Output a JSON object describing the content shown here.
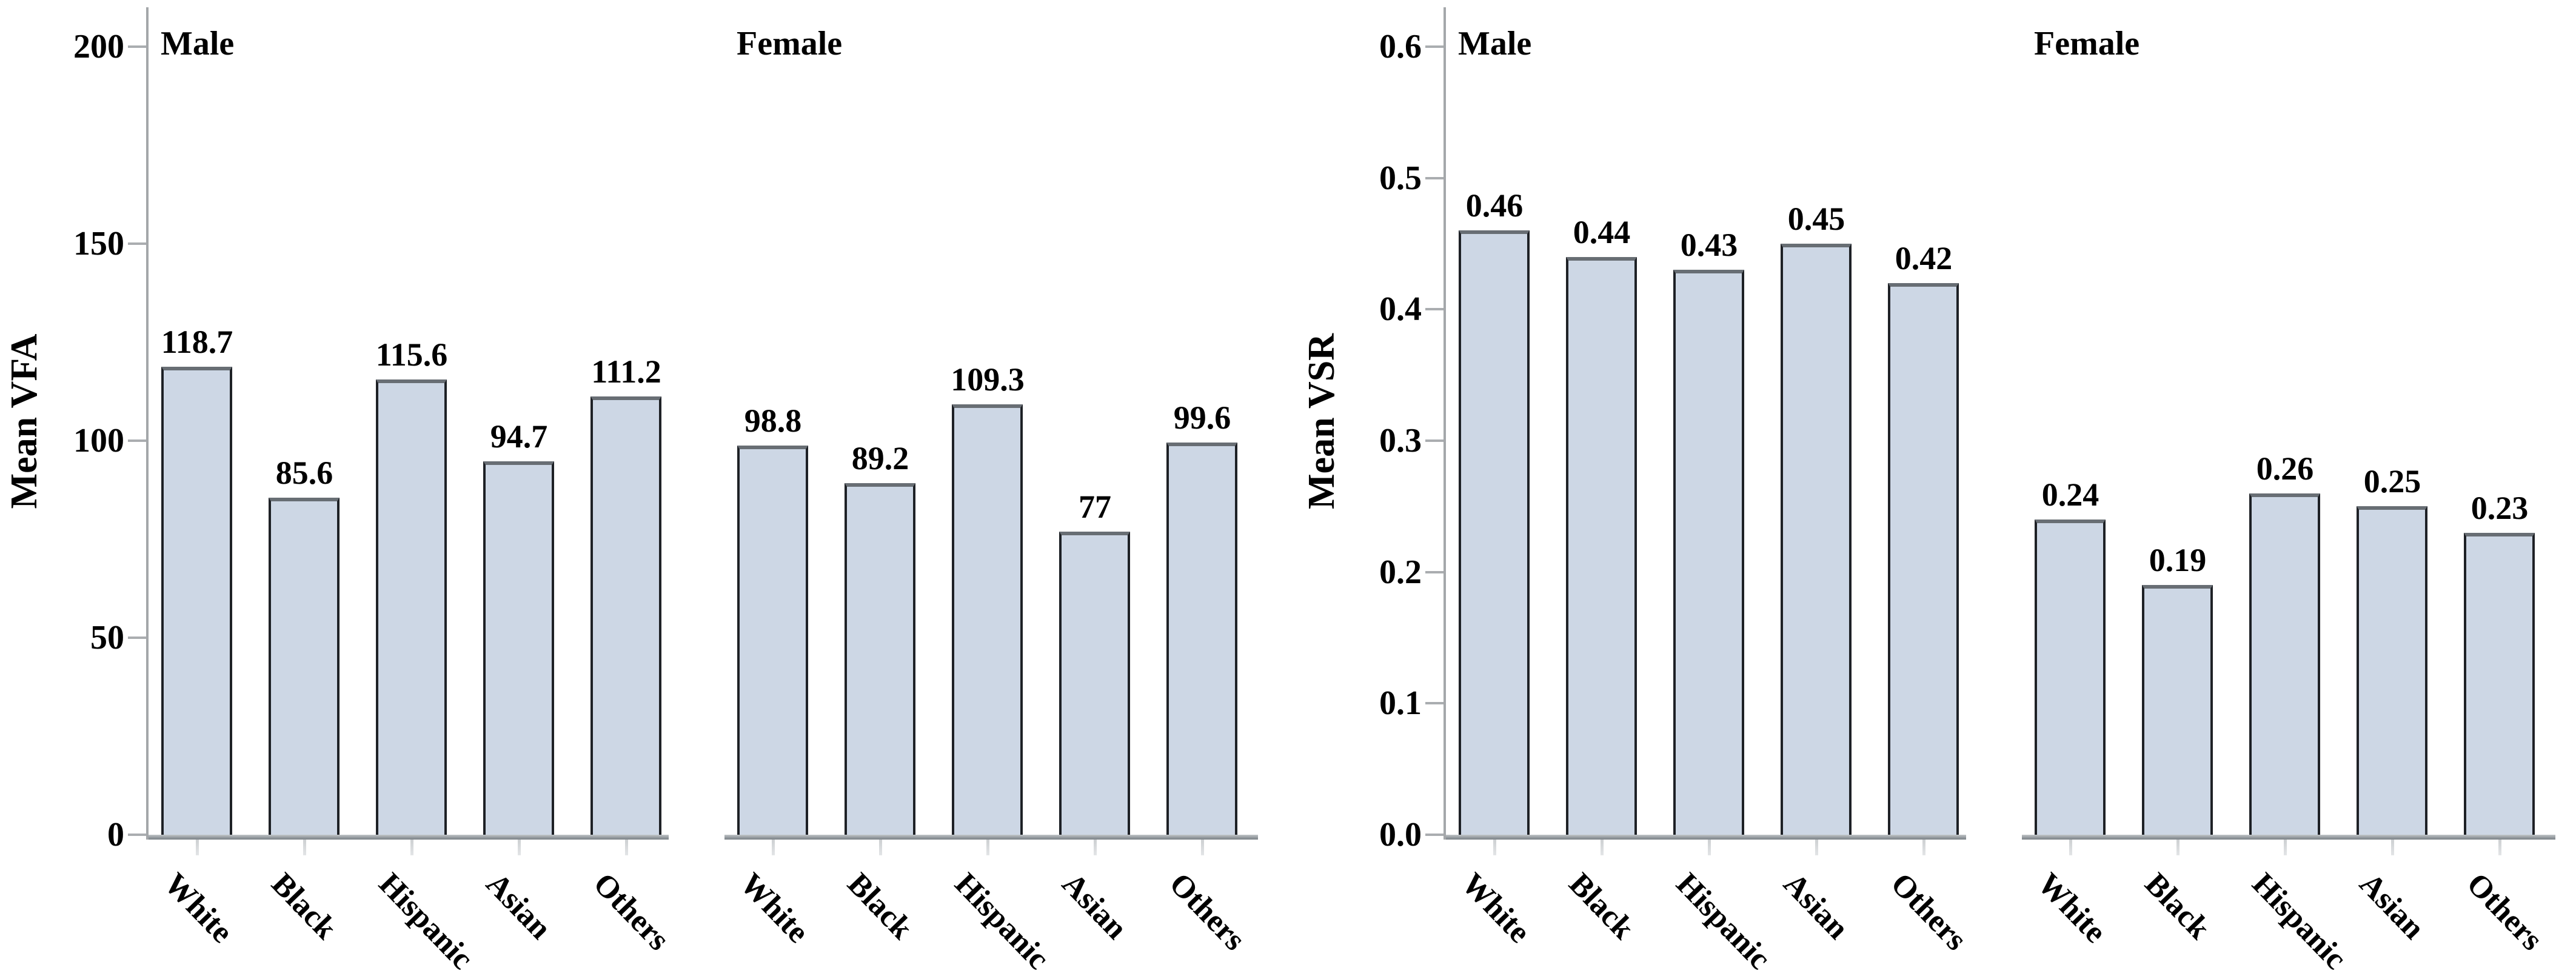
{
  "figure": {
    "background": "#ffffff",
    "bar_fill": "#cdd7e5",
    "bar_border": "#1e2126",
    "bar_top_edge": "#686e74",
    "axis_line_gray": "#a4a7aa",
    "y_tick_gray": "#aaadb0",
    "x_tick_gray": "#cdd0d2",
    "baseline_gray": "#969ca1",
    "text_color": "#000000"
  },
  "chart_data": [
    {
      "type": "bar",
      "ylabel": "Mean VFA",
      "xlabel": "",
      "ylim": [
        0,
        200
      ],
      "yticks": [
        "0",
        "50",
        "100",
        "150",
        "200"
      ],
      "grid": "off",
      "legend": "none",
      "categories": [
        "White",
        "Black",
        "Hispanic",
        "Asian",
        "Others"
      ],
      "panels": [
        {
          "label": "Male",
          "values": [
            118.7,
            85.6,
            115.6,
            94.7,
            111.2
          ],
          "value_labels": [
            "118.7",
            "85.6",
            "115.6",
            "94.7",
            "111.2"
          ]
        },
        {
          "label": "Female",
          "values": [
            98.8,
            89.2,
            109.3,
            77,
            99.6
          ],
          "value_labels": [
            "98.8",
            "89.2",
            "109.3",
            "77",
            "99.6"
          ]
        }
      ]
    },
    {
      "type": "bar",
      "ylabel": "Mean VSR",
      "xlabel": "",
      "ylim": [
        0,
        0.6
      ],
      "yticks": [
        "0.0",
        "0.1",
        "0.2",
        "0.3",
        "0.4",
        "0.5",
        "0.6"
      ],
      "grid": "off",
      "legend": "none",
      "categories": [
        "White",
        "Black",
        "Hispanic",
        "Asian",
        "Others"
      ],
      "panels": [
        {
          "label": "Male",
          "values": [
            0.46,
            0.44,
            0.43,
            0.45,
            0.42
          ],
          "value_labels": [
            "0.46",
            "0.44",
            "0.43",
            "0.45",
            "0.42"
          ]
        },
        {
          "label": "Female",
          "values": [
            0.24,
            0.19,
            0.26,
            0.25,
            0.23
          ],
          "value_labels": [
            "0.24",
            "0.19",
            "0.26",
            "0.25",
            "0.23"
          ]
        }
      ]
    }
  ]
}
